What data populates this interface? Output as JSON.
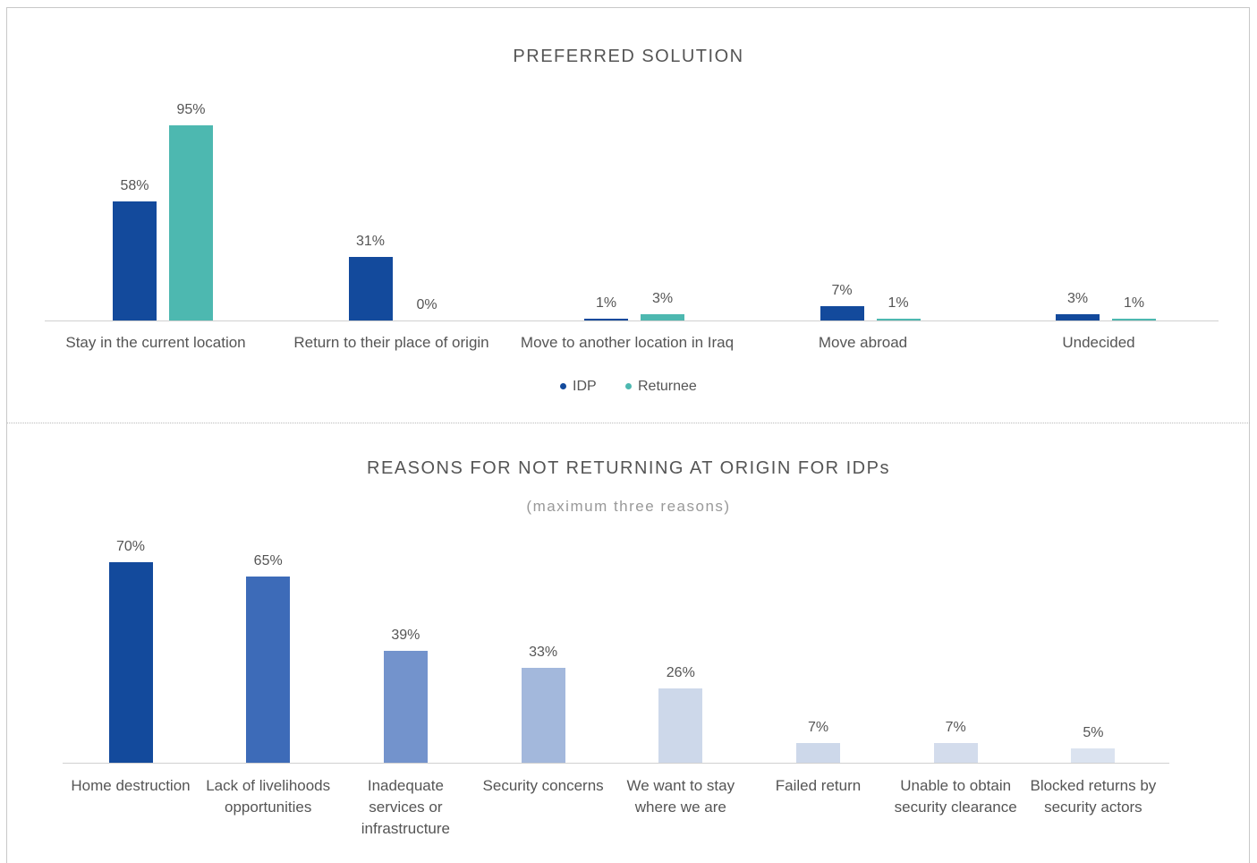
{
  "chart_data": [
    {
      "type": "bar",
      "title": "PREFERRED SOLUTION",
      "categories": [
        "Stay in the current location",
        "Return to their place of origin",
        "Move to another location in Iraq",
        "Move abroad",
        "Undecided"
      ],
      "series": [
        {
          "name": "IDP",
          "color": "#134a9c",
          "values": [
            58,
            31,
            1,
            7,
            3
          ],
          "value_labels": [
            "58%",
            "31%",
            "1%",
            "7%",
            "3%"
          ]
        },
        {
          "name": "Returnee",
          "color": "#4db8b0",
          "values": [
            95,
            0,
            3,
            1,
            1
          ],
          "value_labels": [
            "95%",
            "0%",
            "3%",
            "1%",
            "1%"
          ]
        }
      ],
      "legend": "bottom"
    },
    {
      "type": "bar",
      "title": "REASONS FOR NOT RETURNING AT ORIGIN FOR IDPs",
      "subtitle": "(maximum three reasons)",
      "categories": [
        "Home destruction",
        "Lack of livelihoods opportunities",
        "Inadequate services or infrastructure",
        "Security concerns",
        "We want to stay where we are",
        "Failed return",
        "Unable to obtain security clearance",
        "Blocked returns by security actors"
      ],
      "values": [
        70,
        65,
        39,
        33,
        26,
        7,
        7,
        5
      ],
      "value_labels": [
        "70%",
        "65%",
        "39%",
        "33%",
        "26%",
        "7%",
        "7%",
        "5%"
      ],
      "colors": [
        "#134a9c",
        "#3d6bb8",
        "#7393cc",
        "#a3b8dc",
        "#cdd8ea",
        "#cdd8ea",
        "#d3dcec",
        "#dbe3f0"
      ]
    }
  ]
}
